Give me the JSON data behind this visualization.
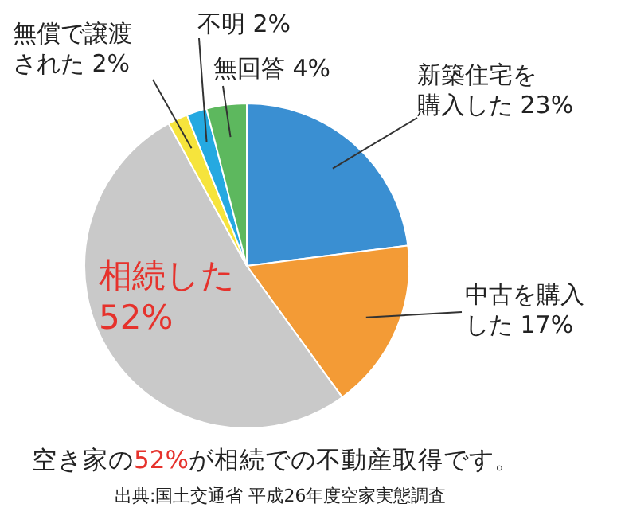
{
  "chart_data": {
    "type": "pie",
    "categories": [
      "新築住宅を購入した",
      "中古を購入した",
      "相続した",
      "無償で譲渡された",
      "不明",
      "無回答"
    ],
    "values": [
      23,
      17,
      52,
      2,
      2,
      4
    ],
    "value_labels": [
      "23%",
      "17%",
      "52%",
      "2%",
      "2%",
      "4%"
    ],
    "colors": [
      "#3a8fd2",
      "#f39b36",
      "#c9c9c9",
      "#f6e43c",
      "#25a9e1",
      "#5db85e"
    ],
    "annotations": [
      "空き家の52%が相続での不動産取得です。",
      "出典:国土交通省 平成26年度空家実態調査"
    ]
  }
}
